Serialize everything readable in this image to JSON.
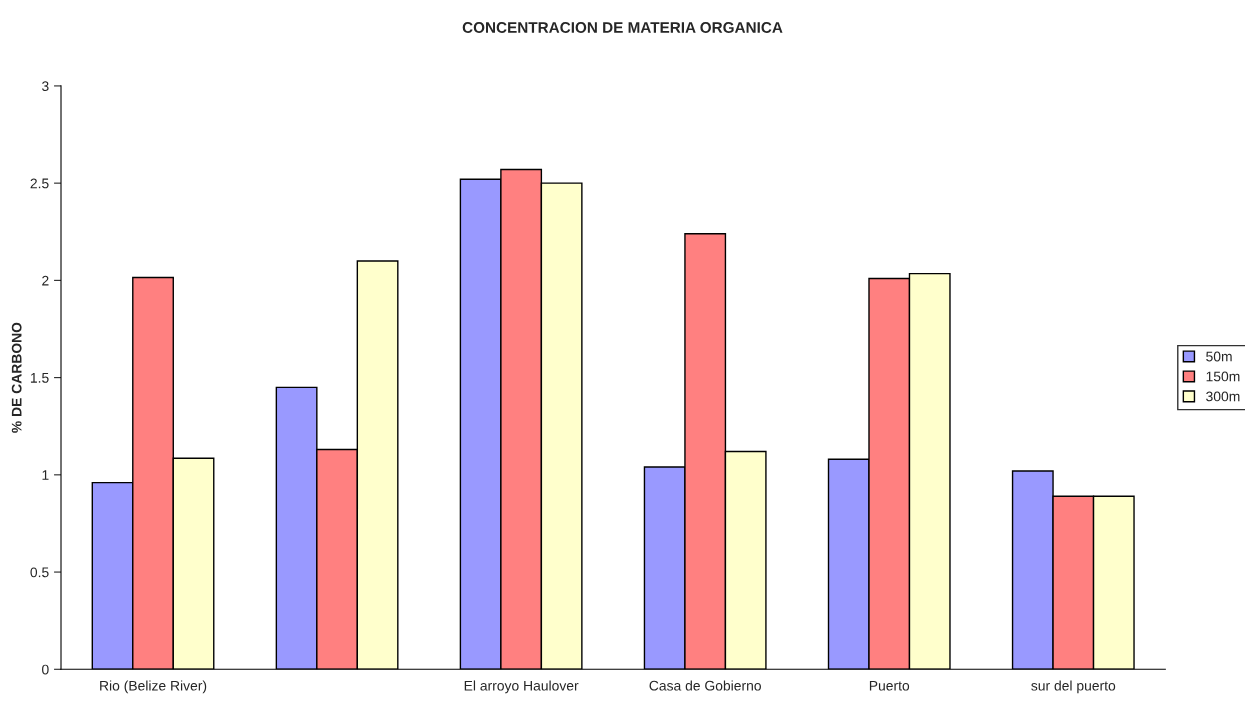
{
  "chart_data": {
    "type": "bar",
    "title": "CONCENTRACION DE MATERIA ORGANICA",
    "ylabel": "% DE CARBONO",
    "categories": [
      "Rio (Belize River)",
      null,
      "El arroyo Haulover",
      "Casa de Gobierno",
      "Puerto",
      "sur del puerto"
    ],
    "series": [
      {
        "name": "50m",
        "color": "#9999ff",
        "values": [
          0.96,
          1.45,
          2.52,
          1.04,
          1.08,
          1.02
        ]
      },
      {
        "name": "150m",
        "color": "#ff8080",
        "values": [
          2.015,
          1.13,
          2.57,
          2.24,
          2.01,
          0.89
        ]
      },
      {
        "name": "300m",
        "color": "#ffffcc",
        "values": [
          1.085,
          2.1,
          2.5,
          1.12,
          2.035,
          0.89
        ]
      }
    ],
    "ylim": [
      0,
      3
    ],
    "yticks": [
      0,
      0.5,
      1,
      1.5,
      2,
      2.5,
      3
    ],
    "grid": false,
    "legend": "right"
  }
}
